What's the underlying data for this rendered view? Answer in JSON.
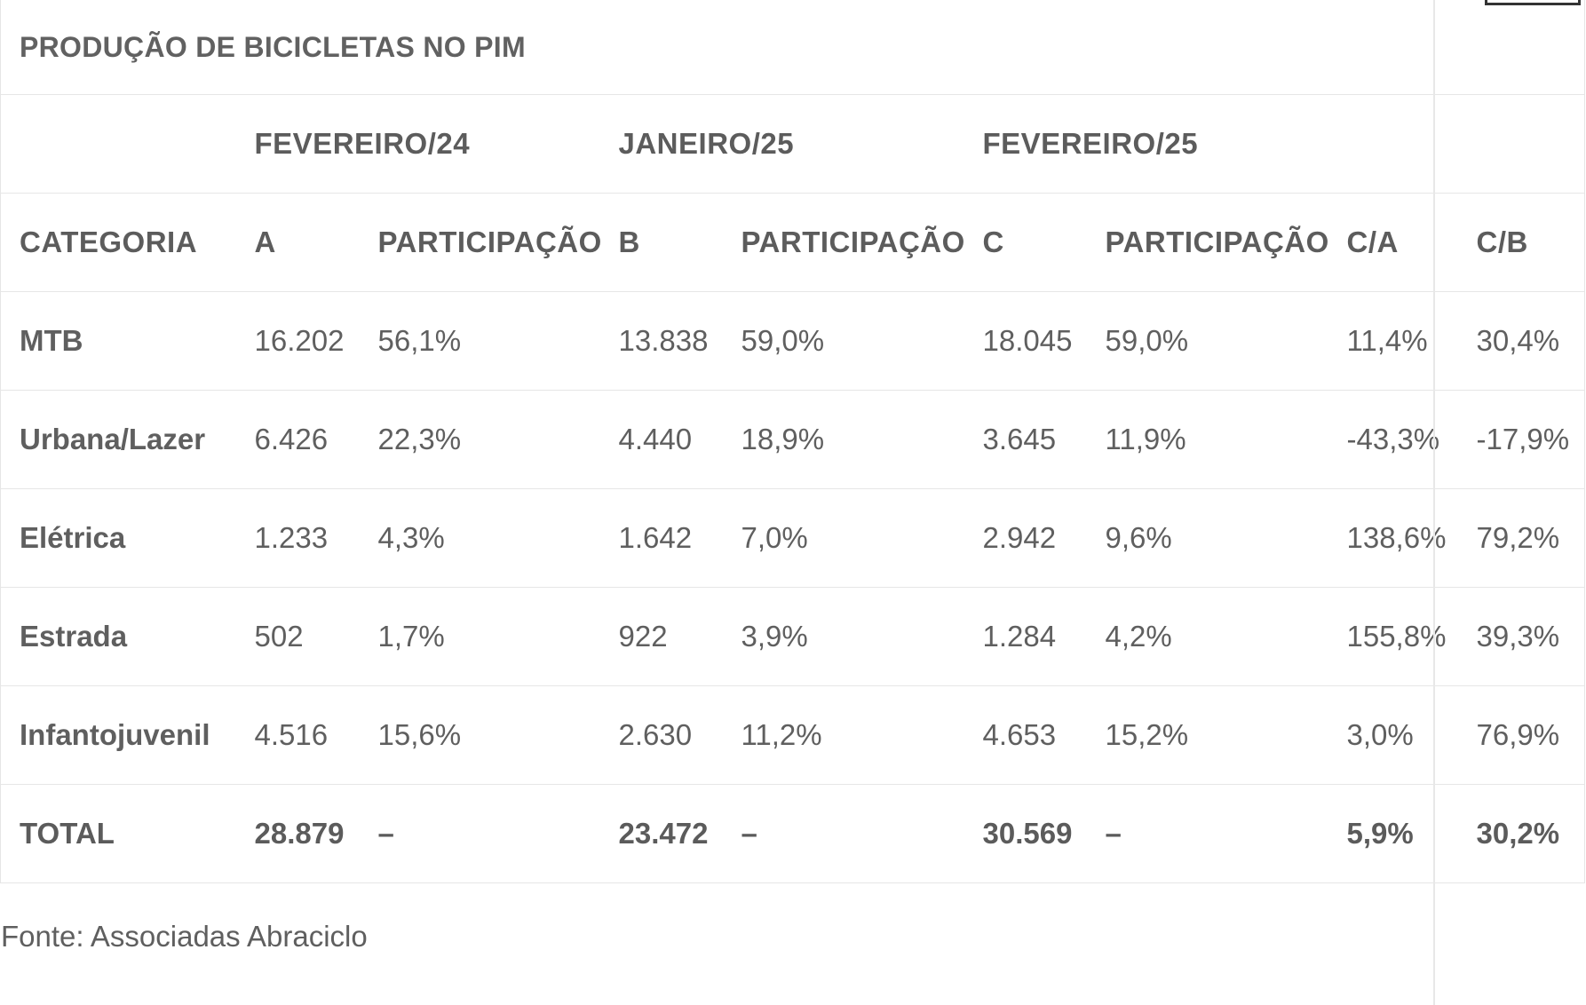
{
  "title": "PRODUÇÃO DE BICICLETAS NO PIM",
  "periods": [
    "FEVEREIRO/24",
    "JANEIRO/25",
    "FEVEREIRO/25"
  ],
  "columns": [
    "CATEGORIA",
    "A",
    "PARTICIPAÇÃO",
    "B",
    "PARTICIPAÇÃO",
    "C",
    "PARTICIPAÇÃO",
    "C/A",
    "C/B"
  ],
  "rows": [
    [
      "MTB",
      "16.202",
      "56,1%",
      "13.838",
      "59,0%",
      "18.045",
      "59,0%",
      "11,4%",
      "30,4%"
    ],
    [
      "Urbana/Lazer",
      "6.426",
      "22,3%",
      "4.440",
      "18,9%",
      "3.645",
      "11,9%",
      "-43,3%",
      "-17,9%"
    ],
    [
      "Elétrica",
      "1.233",
      "4,3%",
      "1.642",
      "7,0%",
      "2.942",
      "9,6%",
      "138,6%",
      "79,2%"
    ],
    [
      "Estrada",
      "502",
      "1,7%",
      "922",
      "3,9%",
      "1.284",
      "4,2%",
      "155,8%",
      "39,3%"
    ],
    [
      "Infantojuvenil",
      "4.516",
      "15,6%",
      "2.630",
      "11,2%",
      "4.653",
      "15,2%",
      "3,0%",
      "76,9%"
    ]
  ],
  "total": [
    "TOTAL",
    "28.879",
    "–",
    "23.472",
    "–",
    "30.569",
    "–",
    "5,9%",
    "30,2%"
  ],
  "source": "Fonte: Associadas Abraciclo"
}
